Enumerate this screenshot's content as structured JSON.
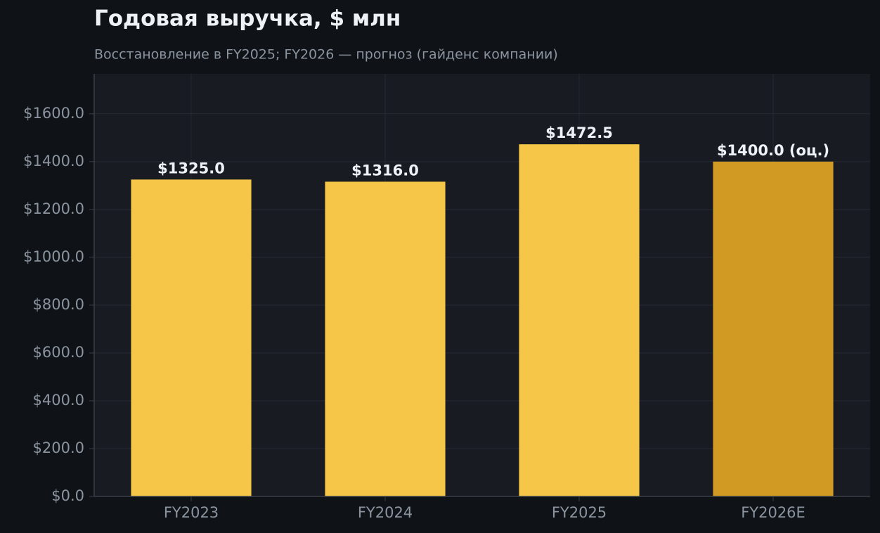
{
  "chart_data": {
    "type": "bar",
    "title": "Годовая выручка, $ млн",
    "subtitle": "Восстановление в FY2025; FY2026 — прогноз (гайденс компании)",
    "categories": [
      "FY2023",
      "FY2024",
      "FY2025",
      "FY2026E"
    ],
    "values": [
      1325.0,
      1316.0,
      1472.5,
      1400.0
    ],
    "value_labels": [
      "$1325.0",
      "$1316.0",
      "$1472.5",
      "$1400.0 (оц.)"
    ],
    "colors": [
      "#f5c647",
      "#f5c647",
      "#f5c647",
      "#d19a22"
    ],
    "ylim": [
      0,
      1767
    ],
    "yticks": [
      {
        "value": 0,
        "label": "$0.0"
      },
      {
        "value": 200,
        "label": "$200.0"
      },
      {
        "value": 400,
        "label": "$400.0"
      },
      {
        "value": 600,
        "label": "$600.0"
      },
      {
        "value": 800,
        "label": "$800.0"
      },
      {
        "value": 1000,
        "label": "$1000.0"
      },
      {
        "value": 1200,
        "label": "$1200.0"
      },
      {
        "value": 1400,
        "label": "$1400.0"
      },
      {
        "value": 1600,
        "label": "$1600.0"
      }
    ],
    "grid": true
  }
}
